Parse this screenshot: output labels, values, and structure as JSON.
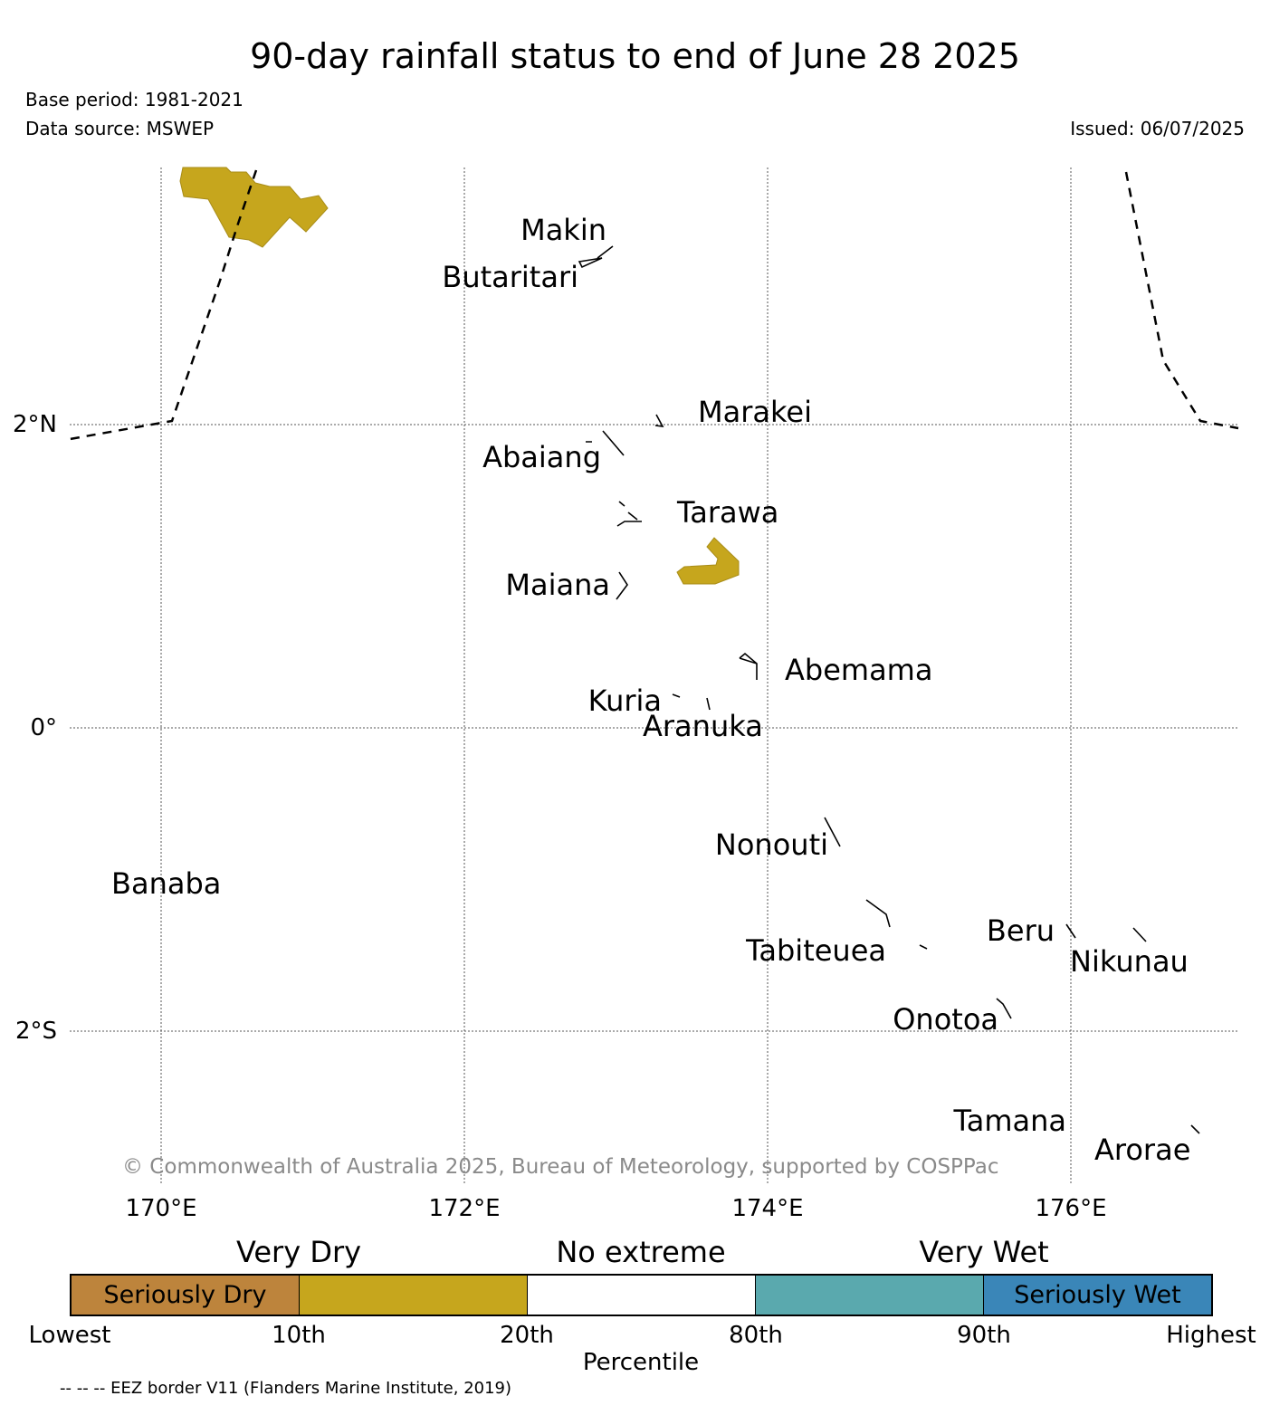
{
  "title": "90-day rainfall status to end of June 28 2025",
  "base_period": "Base period: 1981-2021",
  "data_source": "Data source: MSWEP",
  "issued": "Issued: 06/07/2025",
  "copyright": "© Commonwealth of Australia 2025, Bureau of Meteorology, supported by COSPPac",
  "eez_note": "-- -- -- EEZ border V11 (Flanders Marine Institute, 2019)",
  "map": {
    "lon_labels": [
      "170°E",
      "172°E",
      "174°E",
      "176°E"
    ],
    "lat_labels": [
      "2°N",
      "0°",
      "2°S"
    ],
    "islands": [
      "Makin",
      "Butaritari",
      "Marakei",
      "Abaiang",
      "Tarawa",
      "Maiana",
      "Abemama",
      "Kuria",
      "Aranuka",
      "Nonouti",
      "Banaba",
      "Tabiteuea",
      "Beru",
      "Nikunau",
      "Onotoa",
      "Tamana",
      "Arorae"
    ],
    "category_colors": {
      "seriously_dry": "#bd843c",
      "very_dry": "#c6a61d",
      "no_extreme": "#ffffff",
      "very_wet": "#5aa9ae",
      "seriously_wet": "#3a86b8"
    }
  },
  "legend": {
    "group_labels": [
      "Very Dry",
      "No extreme",
      "Very Wet"
    ],
    "segments": [
      "Seriously Dry",
      "",
      "",
      "",
      "Seriously Wet"
    ],
    "ticks": [
      "Lowest",
      "10th",
      "20th",
      "80th",
      "90th",
      "Highest"
    ],
    "axis_label": "Percentile"
  }
}
